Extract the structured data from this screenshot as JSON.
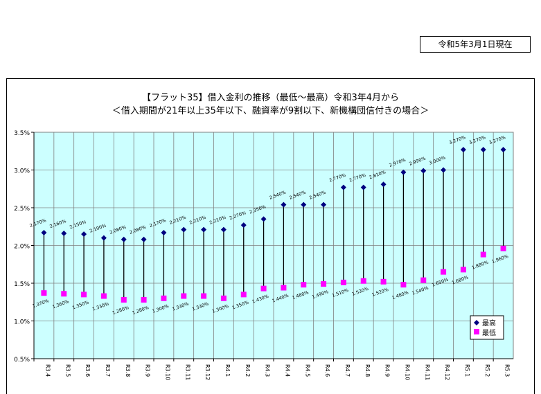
{
  "as_of": "令和5年3月1日現在",
  "chart_data": {
    "type": "high-low",
    "title": "【フラット35】借入金利の推移（最低～最高）令和3年4月から",
    "subtitle": "＜借入期間が21年以上35年以下、融資率が9割以下、新機構団信付きの場合＞",
    "categories": [
      "R3.4",
      "R3.5",
      "R3.6",
      "R3.7",
      "R3.8",
      "R3.9",
      "R3.10",
      "R3.11",
      "R3.12",
      "R4.1",
      "R4.2",
      "R4.3",
      "R4.4",
      "R4.5",
      "R4.6",
      "R4.7",
      "R4.8",
      "R4.9",
      "R4.10",
      "R4.11",
      "R4.12",
      "R5.1",
      "R5.2",
      "R5.3"
    ],
    "series": [
      {
        "name": "最高",
        "color": "#000080",
        "marker": "diamond",
        "values": [
          2.17,
          2.16,
          2.15,
          2.1,
          2.08,
          2.08,
          2.17,
          2.21,
          2.21,
          2.21,
          2.27,
          2.35,
          2.54,
          2.54,
          2.54,
          2.77,
          2.77,
          2.81,
          2.97,
          2.99,
          3.0,
          3.27,
          3.27,
          3.27
        ],
        "labels": [
          "2.170%",
          "2.160%",
          "2.150%",
          "2.100%",
          "2.080%",
          "2.080%",
          "2.170%",
          "2.210%",
          "2.210%",
          "2.210%",
          "2.270%",
          "2.350%",
          "2.540%",
          "2.540%",
          "2.540%",
          "2.770%",
          "2.770%",
          "2.810%",
          "2.970%",
          "2.990%",
          "3.000%",
          "3.270%",
          "3.270%",
          "3.270%"
        ]
      },
      {
        "name": "最低",
        "color": "#ff00ff",
        "marker": "square",
        "values": [
          1.37,
          1.36,
          1.35,
          1.33,
          1.28,
          1.28,
          1.3,
          1.33,
          1.33,
          1.3,
          1.35,
          1.43,
          1.44,
          1.48,
          1.49,
          1.51,
          1.53,
          1.52,
          1.48,
          1.54,
          1.65,
          1.68,
          1.88,
          1.96
        ],
        "labels": [
          "1.370%",
          "1.360%",
          "1.350%",
          "1.330%",
          "1.280%",
          "1.280%",
          "1.300%",
          "1.330%",
          "1.330%",
          "1.300%",
          "1.350%",
          "1.430%",
          "1.440%",
          "1.480%",
          "1.490%",
          "1.510%",
          "1.530%",
          "1.520%",
          "1.480%",
          "1.540%",
          "1.650%",
          "1.680%",
          "1.880%",
          "1.960%"
        ]
      }
    ],
    "ylim": [
      0.5,
      3.5
    ],
    "yticks": [
      0.5,
      1.0,
      1.5,
      2.0,
      2.5,
      3.0,
      3.5
    ],
    "ytick_labels": [
      "0.5%",
      "1.0%",
      "1.5%",
      "2.0%",
      "2.5%",
      "3.0%",
      "3.5%"
    ],
    "grid": true,
    "legend": "bottom-right",
    "plot_background": "#ccffff"
  }
}
